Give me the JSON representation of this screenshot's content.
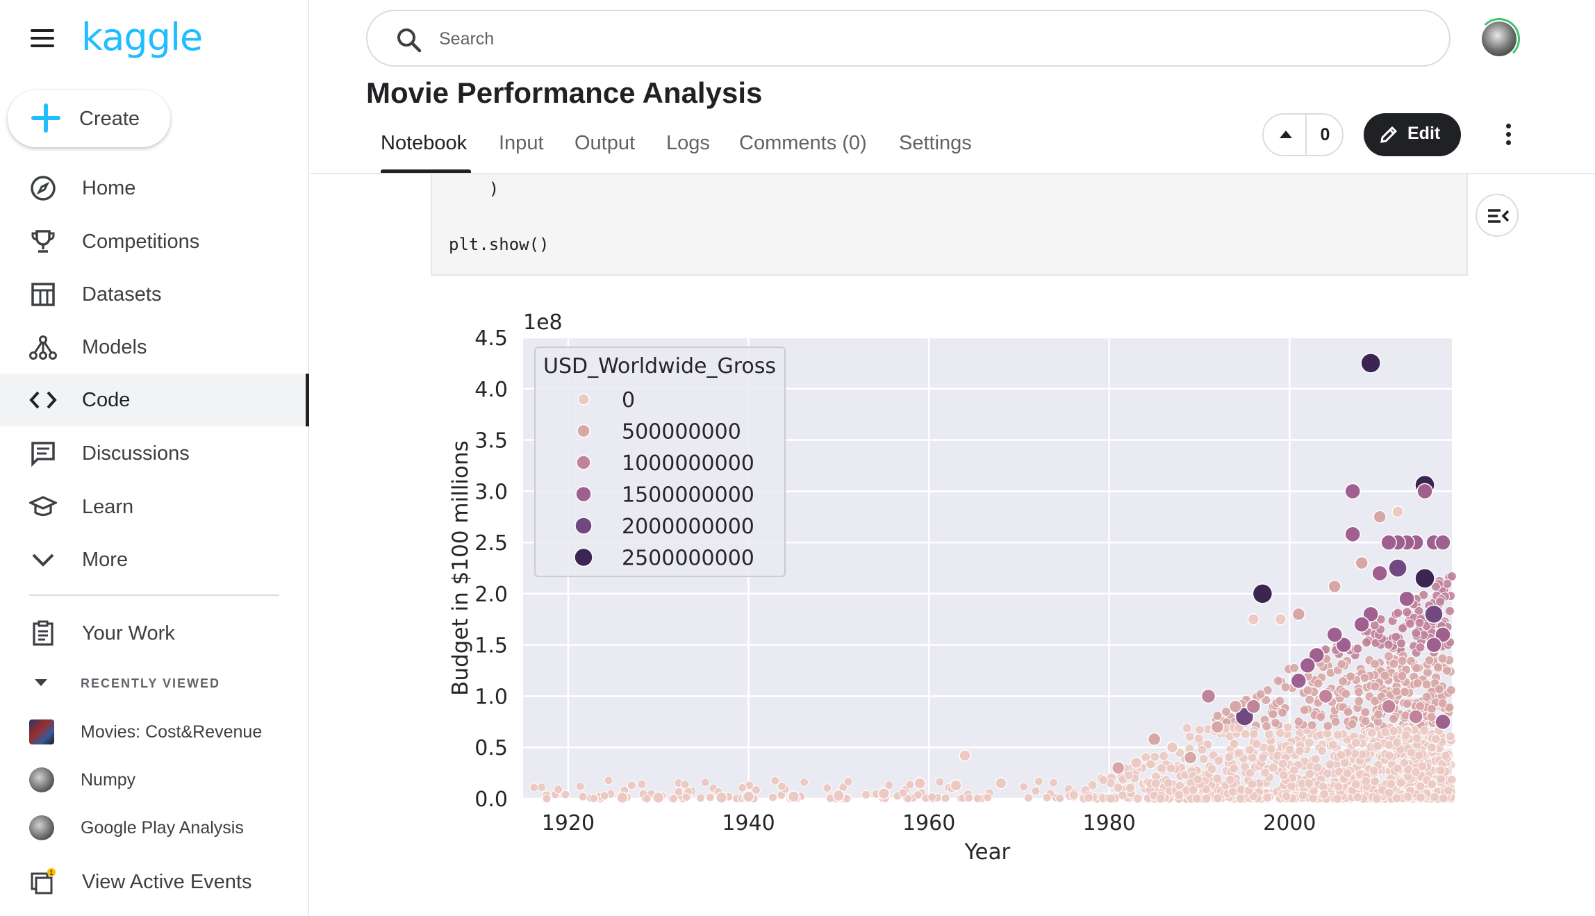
{
  "sidebar": {
    "logo": "kaggle",
    "create_label": "Create",
    "items": [
      {
        "label": "Home",
        "icon": "compass-icon"
      },
      {
        "label": "Competitions",
        "icon": "trophy-icon"
      },
      {
        "label": "Datasets",
        "icon": "table-icon"
      },
      {
        "label": "Models",
        "icon": "models-icon"
      },
      {
        "label": "Code",
        "icon": "code-icon",
        "active": true
      },
      {
        "label": "Discussions",
        "icon": "chat-icon"
      },
      {
        "label": "Learn",
        "icon": "graduation-cap-icon"
      },
      {
        "label": "More",
        "icon": "chevron-down-icon"
      }
    ],
    "your_work": "Your Work",
    "recently_viewed_heading": "RECENTLY VIEWED",
    "recent": [
      {
        "label": "Movies: Cost&Revenue"
      },
      {
        "label": "Numpy"
      },
      {
        "label": "Google Play Analysis"
      }
    ],
    "active_events_label": "View Active Events",
    "active_events_badge": "1"
  },
  "header": {
    "search_placeholder": "Search",
    "title": "Movie Performance Analysis",
    "tabs": [
      "Notebook",
      "Input",
      "Output",
      "Logs",
      "Comments (0)",
      "Settings"
    ],
    "active_tab": "Notebook",
    "vote_count": "0",
    "edit_label": "Edit"
  },
  "code": {
    "lines": [
      "    )",
      "plt.show()"
    ]
  },
  "chart_data": {
    "type": "scatter",
    "title": "",
    "xlabel": "Year",
    "ylabel": "Budget in $100 millions",
    "y_offset_label": "1e8",
    "xlim": [
      1915,
      2018
    ],
    "ylim": [
      0,
      4.5
    ],
    "x_ticks": [
      "1920",
      "1940",
      "1960",
      "1980",
      "2000"
    ],
    "y_ticks": [
      "0.0",
      "0.5",
      "1.0",
      "1.5",
      "2.0",
      "2.5",
      "3.0",
      "3.5",
      "4.0",
      "4.5"
    ],
    "grid": true,
    "legend_position": "upper-left",
    "legend_title": "USD_Worldwide_Gross",
    "legend_entries": [
      "0",
      "500000000",
      "1000000000",
      "1500000000",
      "2000000000",
      "2500000000"
    ],
    "hue_colors": [
      "#ecc9c3",
      "#d8a6a6",
      "#c0839a",
      "#9f6090",
      "#714880",
      "#3b2553"
    ],
    "points": [
      {
        "x": 2009,
        "y": 4.25,
        "hue": 5
      },
      {
        "x": 2015,
        "y": 3.06,
        "hue": 5
      },
      {
        "x": 1997,
        "y": 2.0,
        "hue": 5
      },
      {
        "x": 2015,
        "y": 2.15,
        "hue": 5
      },
      {
        "x": 2012,
        "y": 2.25,
        "hue": 4
      },
      {
        "x": 2015,
        "y": 3.0,
        "hue": 3
      },
      {
        "x": 2016,
        "y": 2.5,
        "hue": 3
      },
      {
        "x": 2017,
        "y": 2.5,
        "hue": 3
      },
      {
        "x": 2014,
        "y": 2.5,
        "hue": 3
      },
      {
        "x": 2013,
        "y": 2.5,
        "hue": 3
      },
      {
        "x": 2012,
        "y": 2.5,
        "hue": 3
      },
      {
        "x": 2011,
        "y": 2.5,
        "hue": 3
      },
      {
        "x": 2007,
        "y": 3.0,
        "hue": 3
      },
      {
        "x": 2007,
        "y": 2.58,
        "hue": 3
      },
      {
        "x": 2013,
        "y": 1.95,
        "hue": 3
      },
      {
        "x": 2016,
        "y": 1.8,
        "hue": 4
      },
      {
        "x": 2017,
        "y": 1.6,
        "hue": 3
      },
      {
        "x": 2016,
        "y": 1.5,
        "hue": 3
      },
      {
        "x": 2009,
        "y": 1.8,
        "hue": 3
      },
      {
        "x": 2006,
        "y": 1.5,
        "hue": 3
      },
      {
        "x": 2003,
        "y": 1.4,
        "hue": 3
      },
      {
        "x": 2002,
        "y": 1.3,
        "hue": 3
      },
      {
        "x": 2001,
        "y": 1.15,
        "hue": 3
      },
      {
        "x": 2005,
        "y": 1.6,
        "hue": 3
      },
      {
        "x": 2010,
        "y": 2.2,
        "hue": 3
      },
      {
        "x": 2008,
        "y": 1.7,
        "hue": 3
      },
      {
        "x": 1995,
        "y": 0.8,
        "hue": 4
      },
      {
        "x": 1991,
        "y": 1.0,
        "hue": 2
      },
      {
        "x": 1996,
        "y": 0.9,
        "hue": 2
      },
      {
        "x": 2004,
        "y": 1.0,
        "hue": 2
      },
      {
        "x": 2011,
        "y": 0.9,
        "hue": 2
      },
      {
        "x": 2014,
        "y": 0.8,
        "hue": 2
      },
      {
        "x": 2017,
        "y": 0.75,
        "hue": 3
      },
      {
        "x": 2012,
        "y": 2.8,
        "hue": 0
      },
      {
        "x": 2010,
        "y": 2.75,
        "hue": 1
      },
      {
        "x": 2008,
        "y": 2.3,
        "hue": 1
      },
      {
        "x": 2005,
        "y": 2.07,
        "hue": 1
      },
      {
        "x": 2001,
        "y": 1.8,
        "hue": 1
      },
      {
        "x": 1996,
        "y": 1.75,
        "hue": 0
      },
      {
        "x": 1999,
        "y": 1.75,
        "hue": 0
      },
      {
        "x": 1985,
        "y": 0.58,
        "hue": 1
      },
      {
        "x": 1987,
        "y": 0.5,
        "hue": 0
      },
      {
        "x": 1964,
        "y": 0.42,
        "hue": 0
      },
      {
        "x": 1959,
        "y": 0.15,
        "hue": 0
      },
      {
        "x": 1963,
        "y": 0.13,
        "hue": 0
      },
      {
        "x": 1968,
        "y": 0.15,
        "hue": 0
      },
      {
        "x": 1981,
        "y": 0.3,
        "hue": 1
      },
      {
        "x": 1983,
        "y": 0.35,
        "hue": 0
      },
      {
        "x": 1989,
        "y": 0.4,
        "hue": 1
      },
      {
        "x": 1992,
        "y": 0.7,
        "hue": 1
      },
      {
        "x": 1994,
        "y": 0.9,
        "hue": 1
      },
      {
        "x": 1926,
        "y": 0.01,
        "hue": 0
      },
      {
        "x": 1930,
        "y": 0.01,
        "hue": 0
      },
      {
        "x": 1937,
        "y": 0.01,
        "hue": 0
      },
      {
        "x": 1940,
        "y": 0.02,
        "hue": 0
      },
      {
        "x": 1945,
        "y": 0.02,
        "hue": 0
      },
      {
        "x": 1950,
        "y": 0.03,
        "hue": 0
      },
      {
        "x": 1955,
        "y": 0.05,
        "hue": 0
      }
    ]
  }
}
